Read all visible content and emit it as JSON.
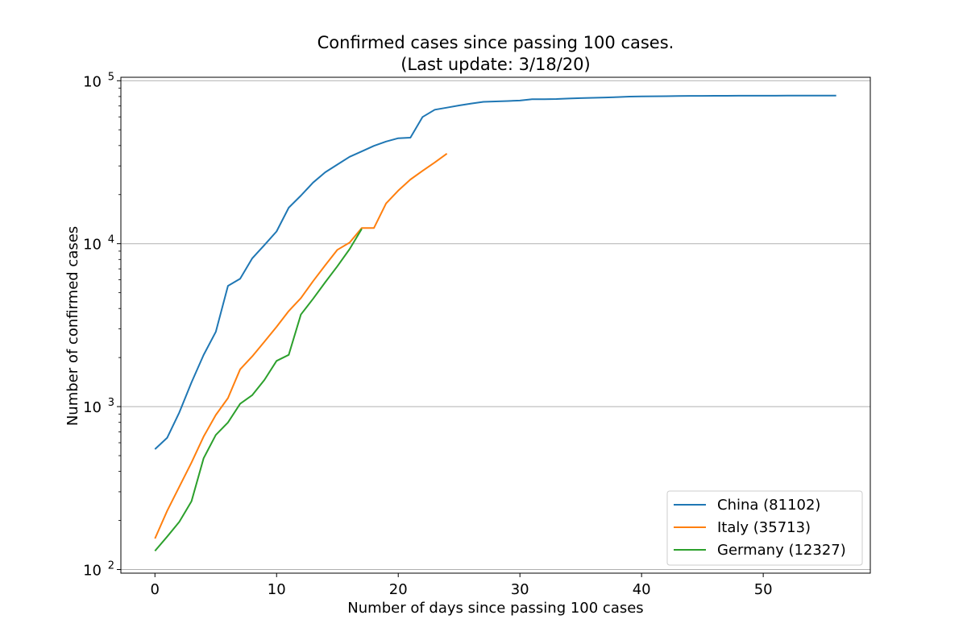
{
  "chart_data": {
    "type": "line",
    "title": "Confirmed cases since passing 100 cases.",
    "subtitle": "(Last update: 3/18/20)",
    "xlabel": "Number of days since passing 100 cases",
    "ylabel": "Number of confirmed cases",
    "y_scale": "log",
    "xlim": [
      -2.8,
      58.8
    ],
    "ylim": [
      95,
      105000
    ],
    "x_ticks": [
      0,
      10,
      20,
      30,
      40,
      50
    ],
    "y_ticks": [
      {
        "value": 100,
        "base": "10",
        "exp": "2"
      },
      {
        "value": 1000,
        "base": "10",
        "exp": "3"
      },
      {
        "value": 10000,
        "base": "10",
        "exp": "4"
      },
      {
        "value": 100000,
        "base": "10",
        "exp": "5"
      }
    ],
    "grid": "horizontal major",
    "legend_position": "lower right",
    "series": [
      {
        "name": "China (81102)",
        "color": "#1f77b4",
        "x": [
          0,
          1,
          2,
          3,
          4,
          5,
          6,
          7,
          8,
          9,
          10,
          11,
          12,
          13,
          14,
          15,
          16,
          17,
          18,
          19,
          20,
          21,
          22,
          23,
          24,
          25,
          26,
          27,
          28,
          29,
          30,
          31,
          32,
          33,
          34,
          35,
          36,
          37,
          38,
          39,
          40,
          41,
          42,
          43,
          44,
          45,
          46,
          47,
          48,
          49,
          50,
          51,
          52,
          53,
          54,
          55,
          56
        ],
        "y": [
          548,
          643,
          920,
          1406,
          2075,
          2877,
          5509,
          6087,
          8141,
          9802,
          11891,
          16630,
          19716,
          23707,
          27440,
          30587,
          34110,
          36814,
          39829,
          42354,
          44386,
          44759,
          59895,
          66358,
          68413,
          70513,
          72434,
          74211,
          74619,
          75077,
          75550,
          77001,
          77022,
          77241,
          77754,
          78166,
          78600,
          78928,
          79356,
          79932,
          80136,
          80261,
          80386,
          80537,
          80690,
          80770,
          80823,
          80860,
          80887,
          80921,
          80932,
          80945,
          80977,
          81003,
          81033,
          81058,
          81102
        ]
      },
      {
        "name": "Italy (35713)",
        "color": "#ff7f0e",
        "x": [
          0,
          1,
          2,
          3,
          4,
          5,
          6,
          7,
          8,
          9,
          10,
          11,
          12,
          13,
          14,
          15,
          16,
          17,
          18,
          19,
          20,
          21,
          22,
          23,
          24
        ],
        "y": [
          155,
          229,
          322,
          453,
          655,
          888,
          1128,
          1694,
          2036,
          2502,
          3089,
          3858,
          4636,
          5883,
          7375,
          9172,
          10149,
          12462,
          12462,
          17660,
          21157,
          24747,
          27980,
          31506,
          35713
        ]
      },
      {
        "name": "Germany (12327)",
        "color": "#2ca02c",
        "x": [
          0,
          1,
          2,
          3,
          4,
          5,
          6,
          7,
          8,
          9,
          10,
          11,
          12,
          13,
          14,
          15,
          16,
          17
        ],
        "y": [
          130,
          159,
          196,
          262,
          482,
          670,
          799,
          1040,
          1176,
          1457,
          1908,
          2078,
          3675,
          4585,
          5795,
          7272,
          9257,
          12327
        ]
      }
    ]
  }
}
